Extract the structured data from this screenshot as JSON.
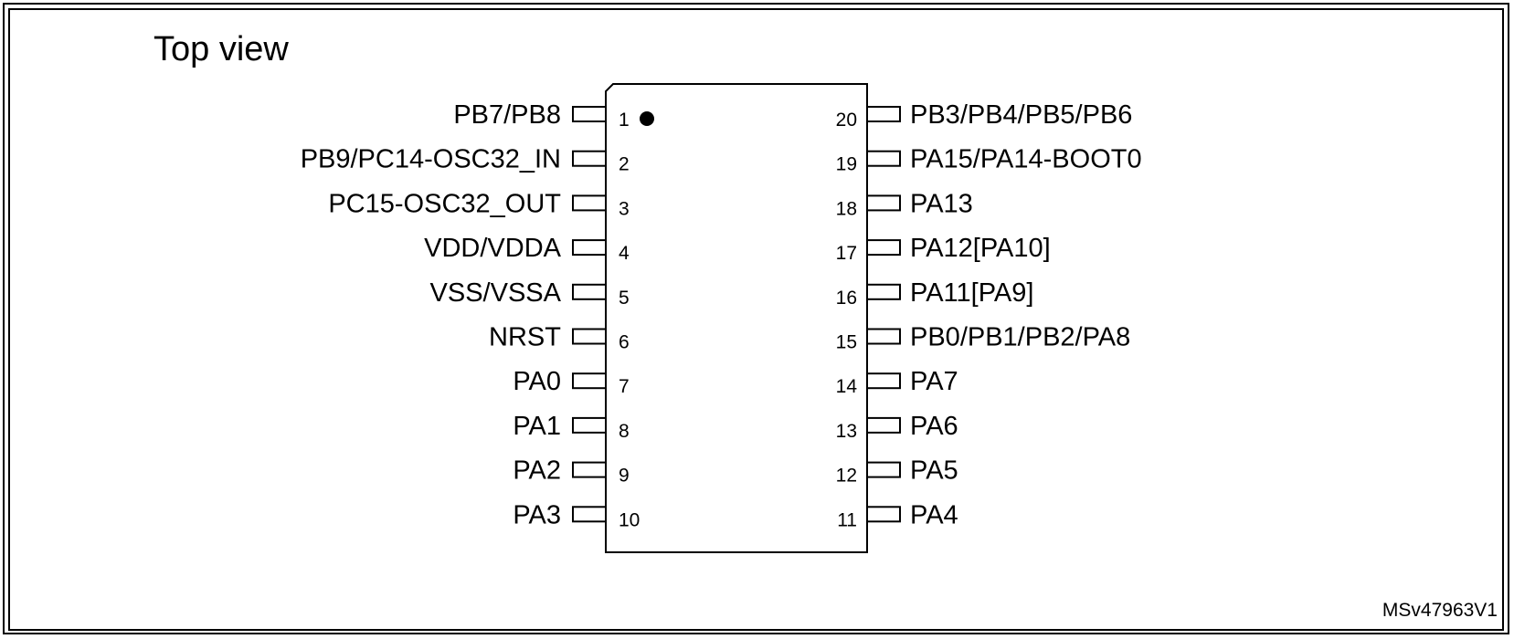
{
  "title": "Top view",
  "reference": "MSv47963V1",
  "package": {
    "pin1_marker": "dot",
    "left_pins": [
      {
        "number": "1",
        "label": "PB7/PB8"
      },
      {
        "number": "2",
        "label": "PB9/PC14-OSC32_IN"
      },
      {
        "number": "3",
        "label": "PC15-OSC32_OUT"
      },
      {
        "number": "4",
        "label": "VDD/VDDA"
      },
      {
        "number": "5",
        "label": "VSS/VSSA"
      },
      {
        "number": "6",
        "label": "NRST"
      },
      {
        "number": "7",
        "label": "PA0"
      },
      {
        "number": "8",
        "label": "PA1"
      },
      {
        "number": "9",
        "label": "PA2"
      },
      {
        "number": "10",
        "label": "PA3"
      }
    ],
    "right_pins": [
      {
        "number": "20",
        "label": "PB3/PB4/PB5/PB6"
      },
      {
        "number": "19",
        "label": "PA15/PA14-BOOT0"
      },
      {
        "number": "18",
        "label": "PA13"
      },
      {
        "number": "17",
        "label": "PA12[PA10]"
      },
      {
        "number": "16",
        "label": "PA11[PA9]"
      },
      {
        "number": "15",
        "label": "PB0/PB1/PB2/PA8"
      },
      {
        "number": "14",
        "label": "PA7"
      },
      {
        "number": "13",
        "label": "PA6"
      },
      {
        "number": "12",
        "label": "PA5"
      },
      {
        "number": "11",
        "label": "PA4"
      }
    ]
  }
}
